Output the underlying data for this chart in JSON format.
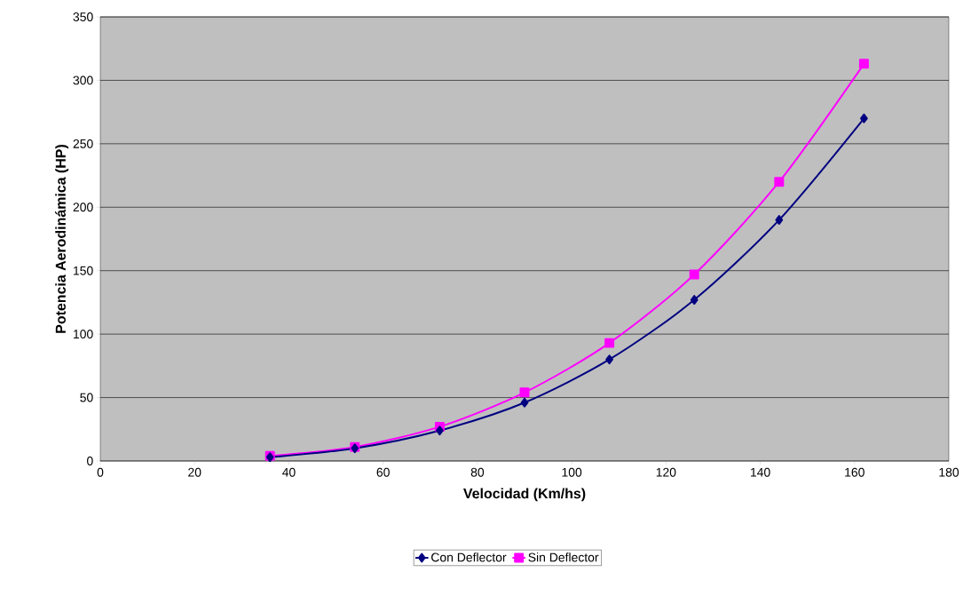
{
  "chart_data": {
    "type": "line",
    "xlabel": "Velocidad (Km/hs)",
    "ylabel": "Potencia Aerodinámica (HP)",
    "x": [
      36,
      54,
      72,
      90,
      108,
      126,
      144,
      162
    ],
    "series": [
      {
        "name": "Con Deflector",
        "color": "#000080",
        "marker": "diamond",
        "values": [
          3,
          10,
          24,
          46,
          80,
          127,
          190,
          270
        ]
      },
      {
        "name": "Sin Deflector",
        "color": "#ff00ff",
        "marker": "square",
        "values": [
          4,
          11,
          27,
          54,
          93,
          147,
          220,
          313
        ]
      }
    ],
    "xlim": [
      0,
      180
    ],
    "xticks": [
      0,
      20,
      40,
      60,
      80,
      100,
      120,
      140,
      160,
      180
    ],
    "ylim": [
      0,
      350
    ],
    "yticks": [
      0,
      50,
      100,
      150,
      200,
      250,
      300,
      350
    ],
    "grid": "y",
    "legend": "bottom",
    "line_style": "solid"
  }
}
